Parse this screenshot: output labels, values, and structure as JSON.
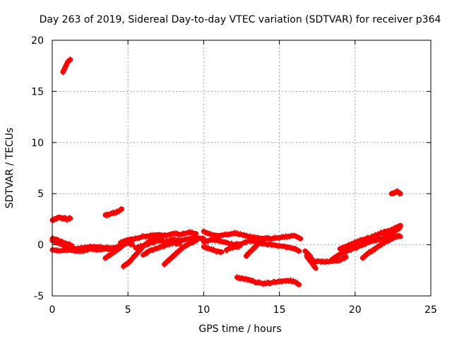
{
  "chart_data": {
    "type": "scatter",
    "title": "Day 263 of 2019, Sidereal Day-to-day VTEC variation (SDTVAR) for receiver p364",
    "xlabel": "GPS time / hours",
    "ylabel": "SDTVAR / TECUs",
    "xlim": [
      0,
      25
    ],
    "ylim": [
      -5,
      20
    ],
    "xticks": [
      "0",
      "5",
      "10",
      "15",
      "20",
      "25"
    ],
    "yticks": [
      "-5",
      "0",
      "5",
      "10",
      "15",
      "20"
    ],
    "grid": true,
    "marker": "plus",
    "series_color": "#ff0000",
    "series": [
      {
        "name": "SDTVAR",
        "segments": [
          [
            [
              0.7,
              16.9
            ],
            [
              0.8,
              17.2
            ],
            [
              0.9,
              17.5
            ],
            [
              1.0,
              17.8
            ],
            [
              1.1,
              18.0
            ],
            [
              1.2,
              18.1
            ]
          ],
          [
            [
              0.0,
              2.4
            ],
            [
              0.2,
              2.5
            ],
            [
              0.4,
              2.7
            ],
            [
              0.6,
              2.6
            ],
            [
              0.8,
              2.6
            ],
            [
              1.0,
              2.5
            ],
            [
              1.2,
              2.6
            ]
          ],
          [
            [
              3.5,
              2.9
            ],
            [
              3.8,
              3.0
            ],
            [
              4.1,
              3.1
            ],
            [
              4.4,
              3.3
            ],
            [
              4.6,
              3.5
            ]
          ],
          [
            [
              22.4,
              5.0
            ],
            [
              22.6,
              5.1
            ],
            [
              22.8,
              5.2
            ],
            [
              23.0,
              5.0
            ]
          ],
          [
            [
              0.0,
              0.4
            ],
            [
              0.5,
              0.1
            ],
            [
              1.0,
              -0.2
            ],
            [
              1.5,
              -0.4
            ],
            [
              2.0,
              -0.3
            ],
            [
              2.5,
              -0.2
            ],
            [
              3.0,
              -0.2
            ],
            [
              3.5,
              -0.3
            ],
            [
              4.0,
              -0.3
            ],
            [
              4.5,
              -0.2
            ]
          ],
          [
            [
              0.0,
              -0.5
            ],
            [
              0.5,
              -0.6
            ],
            [
              1.0,
              -0.5
            ],
            [
              1.5,
              -0.6
            ],
            [
              2.0,
              -0.6
            ],
            [
              2.5,
              -0.4
            ],
            [
              3.0,
              -0.5
            ],
            [
              3.5,
              -0.4
            ],
            [
              4.0,
              -0.5
            ]
          ],
          [
            [
              0.0,
              0.6
            ],
            [
              0.3,
              0.5
            ],
            [
              0.6,
              0.3
            ],
            [
              1.0,
              0.1
            ],
            [
              1.3,
              -0.1
            ]
          ],
          [
            [
              3.5,
              -1.3
            ],
            [
              3.8,
              -1.0
            ],
            [
              4.1,
              -0.7
            ],
            [
              4.4,
              -0.4
            ],
            [
              4.7,
              0.0
            ],
            [
              5.0,
              0.2
            ],
            [
              5.3,
              0.0
            ]
          ],
          [
            [
              4.7,
              -2.1
            ],
            [
              5.0,
              -1.8
            ],
            [
              5.2,
              -1.5
            ],
            [
              5.5,
              -1.0
            ],
            [
              5.8,
              -0.5
            ],
            [
              6.1,
              0.0
            ],
            [
              6.4,
              0.3
            ],
            [
              6.7,
              0.5
            ],
            [
              7.0,
              0.6
            ],
            [
              7.3,
              0.8
            ]
          ],
          [
            [
              4.5,
              0.2
            ],
            [
              5.0,
              0.5
            ],
            [
              5.5,
              0.6
            ],
            [
              6.0,
              0.8
            ],
            [
              6.5,
              0.9
            ],
            [
              7.0,
              1.0
            ],
            [
              7.5,
              0.9
            ],
            [
              8.0,
              1.1
            ],
            [
              8.5,
              1.0
            ],
            [
              9.0,
              1.2
            ],
            [
              9.5,
              1.1
            ]
          ],
          [
            [
              5.5,
              -0.3
            ],
            [
              6.0,
              -0.1
            ],
            [
              6.5,
              0.2
            ],
            [
              7.0,
              0.4
            ],
            [
              7.5,
              0.3
            ],
            [
              8.0,
              0.5
            ],
            [
              8.5,
              0.4
            ],
            [
              9.0,
              0.6
            ],
            [
              9.5,
              0.7
            ],
            [
              10.0,
              0.6
            ]
          ],
          [
            [
              6.0,
              -1.0
            ],
            [
              6.4,
              -0.6
            ],
            [
              6.8,
              -0.4
            ],
            [
              7.2,
              -0.2
            ],
            [
              7.6,
              0.0
            ],
            [
              8.0,
              0.2
            ],
            [
              8.4,
              0.1
            ]
          ],
          [
            [
              7.4,
              -1.9
            ],
            [
              7.7,
              -1.5
            ],
            [
              8.0,
              -1.1
            ],
            [
              8.3,
              -0.7
            ],
            [
              8.6,
              -0.3
            ],
            [
              8.9,
              0.0
            ],
            [
              9.2,
              0.2
            ],
            [
              9.5,
              0.4
            ]
          ],
          [
            [
              10.0,
              1.3
            ],
            [
              10.5,
              1.0
            ],
            [
              11.0,
              0.9
            ],
            [
              11.5,
              1.0
            ],
            [
              12.0,
              1.1
            ],
            [
              12.5,
              1.0
            ],
            [
              13.0,
              0.8
            ],
            [
              13.5,
              0.7
            ],
            [
              14.0,
              0.6
            ],
            [
              14.5,
              0.6
            ],
            [
              15.0,
              0.7
            ],
            [
              15.5,
              0.8
            ],
            [
              16.0,
              0.9
            ],
            [
              16.4,
              0.6
            ]
          ],
          [
            [
              10.0,
              0.3
            ],
            [
              10.5,
              0.5
            ],
            [
              11.0,
              0.4
            ],
            [
              11.5,
              0.2
            ],
            [
              12.0,
              0.0
            ],
            [
              12.5,
              0.1
            ],
            [
              13.0,
              0.4
            ],
            [
              13.5,
              0.3
            ],
            [
              14.0,
              0.1
            ],
            [
              14.5,
              0.0
            ],
            [
              15.0,
              -0.1
            ],
            [
              15.5,
              -0.2
            ],
            [
              16.0,
              -0.4
            ],
            [
              16.3,
              -0.6
            ]
          ],
          [
            [
              10.0,
              -0.2
            ],
            [
              10.4,
              -0.4
            ],
            [
              10.8,
              -0.6
            ],
            [
              11.2,
              -0.7
            ]
          ],
          [
            [
              11.5,
              -0.5
            ],
            [
              11.8,
              -0.3
            ],
            [
              12.1,
              -0.2
            ],
            [
              12.4,
              -0.1
            ]
          ],
          [
            [
              12.8,
              -1.1
            ],
            [
              13.0,
              -0.8
            ],
            [
              13.2,
              -0.5
            ],
            [
              13.4,
              -0.2
            ],
            [
              13.6,
              0.1
            ],
            [
              13.8,
              0.4
            ],
            [
              14.0,
              0.6
            ]
          ],
          [
            [
              12.2,
              -3.2
            ],
            [
              12.6,
              -3.3
            ],
            [
              13.0,
              -3.4
            ],
            [
              13.5,
              -3.7
            ],
            [
              14.0,
              -3.8
            ],
            [
              14.5,
              -3.7
            ],
            [
              15.0,
              -3.6
            ],
            [
              15.5,
              -3.5
            ],
            [
              16.0,
              -3.6
            ],
            [
              16.3,
              -3.9
            ]
          ],
          [
            [
              16.7,
              -0.6
            ],
            [
              16.9,
              -0.9
            ],
            [
              17.1,
              -1.3
            ],
            [
              17.3,
              -1.7
            ],
            [
              17.6,
              -1.6
            ],
            [
              18.0,
              -1.7
            ],
            [
              18.5,
              -1.6
            ],
            [
              19.0,
              -1.5
            ],
            [
              19.4,
              -1.2
            ]
          ],
          [
            [
              16.8,
              -1.1
            ],
            [
              17.0,
              -1.5
            ],
            [
              17.2,
              -1.9
            ],
            [
              17.4,
              -2.3
            ]
          ],
          [
            [
              18.5,
              -1.4
            ],
            [
              19.0,
              -0.9
            ],
            [
              19.5,
              -0.6
            ],
            [
              20.0,
              -0.3
            ],
            [
              20.5,
              0.0
            ],
            [
              21.0,
              0.3
            ],
            [
              21.5,
              0.5
            ],
            [
              22.0,
              0.7
            ],
            [
              22.5,
              0.9
            ],
            [
              23.0,
              0.8
            ]
          ],
          [
            [
              19.0,
              -0.4
            ],
            [
              19.5,
              -0.1
            ],
            [
              20.0,
              0.2
            ],
            [
              20.5,
              0.5
            ],
            [
              21.0,
              0.7
            ],
            [
              21.5,
              1.0
            ],
            [
              22.0,
              1.3
            ],
            [
              22.5,
              1.5
            ],
            [
              23.0,
              1.9
            ]
          ],
          [
            [
              20.5,
              -1.3
            ],
            [
              20.8,
              -0.9
            ],
            [
              21.1,
              -0.6
            ],
            [
              21.4,
              -0.3
            ],
            [
              21.7,
              0.0
            ],
            [
              22.0,
              0.3
            ],
            [
              22.3,
              0.5
            ],
            [
              22.6,
              0.7
            ],
            [
              22.9,
              0.9
            ]
          ],
          [
            [
              22.0,
              1.0
            ],
            [
              22.3,
              1.2
            ],
            [
              22.6,
              1.4
            ],
            [
              22.9,
              1.6
            ],
            [
              23.0,
              1.8
            ]
          ]
        ]
      }
    ]
  }
}
